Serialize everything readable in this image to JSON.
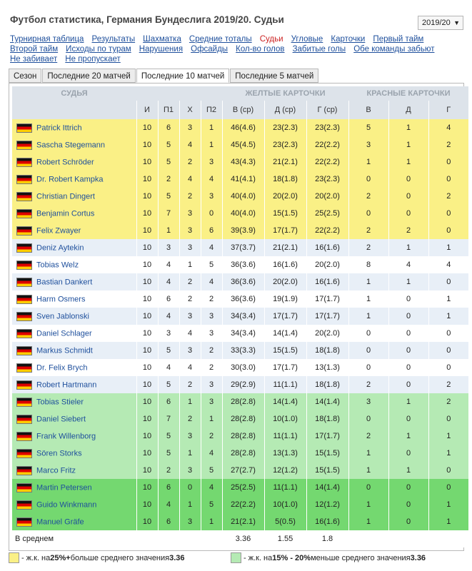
{
  "title": "Футбол статистика, Германия Бундеслига 2019/20. Судьи",
  "season_select": "2019/20",
  "nav": [
    {
      "label": "Турнирная таблица",
      "active": false
    },
    {
      "label": "Результаты",
      "active": false
    },
    {
      "label": "Шахматка",
      "active": false
    },
    {
      "label": "Средние тоталы",
      "active": false
    },
    {
      "label": "Судьи",
      "active": true
    },
    {
      "label": "Угловые",
      "active": false
    },
    {
      "label": "Карточки",
      "active": false
    },
    {
      "label": "Первый тайм",
      "active": false
    },
    {
      "label": "Второй тайм",
      "active": false
    },
    {
      "label": "Исходы по турам",
      "active": false
    },
    {
      "label": "Нарушения",
      "active": false
    },
    {
      "label": "Офсайды",
      "active": false
    },
    {
      "label": "Кол-во голов",
      "active": false
    },
    {
      "label": "Забитые голы",
      "active": false
    },
    {
      "label": "Обе команды забьют",
      "active": false
    },
    {
      "label": "Не забивает",
      "active": false
    },
    {
      "label": "Не пропускает",
      "active": false
    }
  ],
  "tabs": [
    {
      "label": "Сезон",
      "active": false
    },
    {
      "label": "Последние 20 матчей",
      "active": false
    },
    {
      "label": "Последние 10 матчей",
      "active": true
    },
    {
      "label": "Последние 5 матчей",
      "active": false
    }
  ],
  "table": {
    "group_headers": {
      "referee": "СУДЬЯ",
      "yellow": "ЖЕЛТЫЕ КАРТОЧКИ",
      "red": "КРАСНЫЕ КАРТОЧКИ"
    },
    "columns": [
      "И",
      "П1",
      "Х",
      "П2",
      "В (ср)",
      "Д (ср)",
      "Г (ср)",
      "В",
      "Д",
      "Г"
    ],
    "rows": [
      {
        "name": "Patrick Ittrich",
        "cells": [
          "10",
          "6",
          "3",
          "1",
          "46(4.6)",
          "23(2.3)",
          "23(2.3)",
          "5",
          "1",
          "4"
        ],
        "level": "y"
      },
      {
        "name": "Sascha Stegemann",
        "cells": [
          "10",
          "5",
          "4",
          "1",
          "45(4.5)",
          "23(2.3)",
          "22(2.2)",
          "3",
          "1",
          "2"
        ],
        "level": "y"
      },
      {
        "name": "Robert Schröder",
        "cells": [
          "10",
          "5",
          "2",
          "3",
          "43(4.3)",
          "21(2.1)",
          "22(2.2)",
          "1",
          "1",
          "0"
        ],
        "level": "y"
      },
      {
        "name": "Dr. Robert Kampka",
        "cells": [
          "10",
          "2",
          "4",
          "4",
          "41(4.1)",
          "18(1.8)",
          "23(2.3)",
          "0",
          "0",
          "0"
        ],
        "level": "y"
      },
      {
        "name": "Christian Dingert",
        "cells": [
          "10",
          "5",
          "2",
          "3",
          "40(4.0)",
          "20(2.0)",
          "20(2.0)",
          "2",
          "0",
          "2"
        ],
        "level": "y"
      },
      {
        "name": "Benjamin Cortus",
        "cells": [
          "10",
          "7",
          "3",
          "0",
          "40(4.0)",
          "15(1.5)",
          "25(2.5)",
          "0",
          "0",
          "0"
        ],
        "level": "y"
      },
      {
        "name": "Felix Zwayer",
        "cells": [
          "10",
          "1",
          "3",
          "6",
          "39(3.9)",
          "17(1.7)",
          "22(2.2)",
          "2",
          "2",
          "0"
        ],
        "level": "y"
      },
      {
        "name": "Deniz Aytekin",
        "cells": [
          "10",
          "3",
          "3",
          "4",
          "37(3.7)",
          "21(2.1)",
          "16(1.6)",
          "2",
          "1",
          "1"
        ],
        "level": "b"
      },
      {
        "name": "Tobias Welz",
        "cells": [
          "10",
          "4",
          "1",
          "5",
          "36(3.6)",
          "16(1.6)",
          "20(2.0)",
          "8",
          "4",
          "4"
        ],
        "level": "w"
      },
      {
        "name": "Bastian Dankert",
        "cells": [
          "10",
          "4",
          "2",
          "4",
          "36(3.6)",
          "20(2.0)",
          "16(1.6)",
          "1",
          "1",
          "0"
        ],
        "level": "b"
      },
      {
        "name": "Harm Osmers",
        "cells": [
          "10",
          "6",
          "2",
          "2",
          "36(3.6)",
          "19(1.9)",
          "17(1.7)",
          "1",
          "0",
          "1"
        ],
        "level": "w"
      },
      {
        "name": "Sven Jablonski",
        "cells": [
          "10",
          "4",
          "3",
          "3",
          "34(3.4)",
          "17(1.7)",
          "17(1.7)",
          "1",
          "0",
          "1"
        ],
        "level": "b"
      },
      {
        "name": "Daniel Schlager",
        "cells": [
          "10",
          "3",
          "4",
          "3",
          "34(3.4)",
          "14(1.4)",
          "20(2.0)",
          "0",
          "0",
          "0"
        ],
        "level": "w"
      },
      {
        "name": "Markus Schmidt",
        "cells": [
          "10",
          "5",
          "3",
          "2",
          "33(3.3)",
          "15(1.5)",
          "18(1.8)",
          "0",
          "0",
          "0"
        ],
        "level": "b"
      },
      {
        "name": "Dr. Felix Brych",
        "cells": [
          "10",
          "4",
          "4",
          "2",
          "30(3.0)",
          "17(1.7)",
          "13(1.3)",
          "0",
          "0",
          "0"
        ],
        "level": "w"
      },
      {
        "name": "Robert Hartmann",
        "cells": [
          "10",
          "5",
          "2",
          "3",
          "29(2.9)",
          "11(1.1)",
          "18(1.8)",
          "2",
          "0",
          "2"
        ],
        "level": "b"
      },
      {
        "name": "Tobias Stieler",
        "cells": [
          "10",
          "6",
          "1",
          "3",
          "28(2.8)",
          "14(1.4)",
          "14(1.4)",
          "3",
          "1",
          "2"
        ],
        "level": "g"
      },
      {
        "name": "Daniel Siebert",
        "cells": [
          "10",
          "7",
          "2",
          "1",
          "28(2.8)",
          "10(1.0)",
          "18(1.8)",
          "0",
          "0",
          "0"
        ],
        "level": "g"
      },
      {
        "name": "Frank Willenborg",
        "cells": [
          "10",
          "5",
          "3",
          "2",
          "28(2.8)",
          "11(1.1)",
          "17(1.7)",
          "2",
          "1",
          "1"
        ],
        "level": "g"
      },
      {
        "name": "Sören Storks",
        "cells": [
          "10",
          "5",
          "1",
          "4",
          "28(2.8)",
          "13(1.3)",
          "15(1.5)",
          "1",
          "0",
          "1"
        ],
        "level": "g"
      },
      {
        "name": "Marco Fritz",
        "cells": [
          "10",
          "2",
          "3",
          "5",
          "27(2.7)",
          "12(1.2)",
          "15(1.5)",
          "1",
          "1",
          "0"
        ],
        "level": "g"
      },
      {
        "name": "Martin Petersen",
        "cells": [
          "10",
          "6",
          "0",
          "4",
          "25(2.5)",
          "11(1.1)",
          "14(1.4)",
          "0",
          "0",
          "0"
        ],
        "level": "dg"
      },
      {
        "name": "Guido Winkmann",
        "cells": [
          "10",
          "4",
          "1",
          "5",
          "22(2.2)",
          "10(1.0)",
          "12(1.2)",
          "1",
          "0",
          "1"
        ],
        "level": "dg"
      },
      {
        "name": "Manuel Gräfe",
        "cells": [
          "10",
          "6",
          "3",
          "1",
          "21(2.1)",
          "5(0.5)",
          "16(1.6)",
          "1",
          "0",
          "1"
        ],
        "level": "dg"
      }
    ],
    "average": {
      "label": "В среднем",
      "values": [
        "3.36",
        "1.55",
        "1.8"
      ]
    }
  },
  "legend": {
    "yellow": {
      "prefix": "- ж.к. на ",
      "highlight": "25%+",
      "text": " больше среднего значения ",
      "value": "3.36",
      "color": "#faf086"
    },
    "green": {
      "prefix": "- ж.к. на ",
      "highlight": "15% - 20%",
      "text": " меньше среднего значения ",
      "value": "3.36",
      "color": "#b5eab4"
    }
  },
  "colors": {
    "link": "#1e4f9c",
    "active_link": "#cc2222",
    "header_bg": "#dde3ea",
    "yellow_row": "#faf086",
    "blue_row": "#e8eff7",
    "green_row": "#b5eab4",
    "dark_green_row": "#74d870"
  },
  "icons": {
    "flag": "germany-flag-icon",
    "dropdown": "chevron-down-icon"
  }
}
